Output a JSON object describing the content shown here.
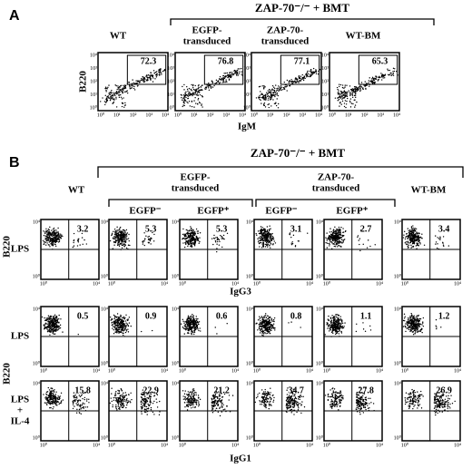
{
  "panel_a": {
    "label": "A",
    "group_header": "ZAP-70⁻/⁻ + BMT",
    "columns": [
      [
        "WT"
      ],
      [
        "EGFP-",
        "transduced"
      ],
      [
        "ZAP-70-",
        "transduced"
      ],
      [
        "WT-BM"
      ]
    ],
    "y_axis": "B220",
    "x_axis": "IgM",
    "values": [
      "72.3",
      "76.8",
      "77.1",
      "65.3"
    ]
  },
  "panel_b": {
    "label": "B",
    "group_header": "ZAP-70⁻/⁻ + BMT",
    "columns": [
      [
        "WT"
      ],
      [
        "EGFP-",
        "transduced"
      ],
      [
        "ZAP-70-",
        "transduced"
      ],
      [
        "WT-BM"
      ]
    ],
    "subcolumns": [
      "EGFP⁻",
      "EGFP⁺",
      "EGFP⁻",
      "EGFP⁺"
    ],
    "rows": [
      {
        "label": [
          "LPS"
        ],
        "values": [
          "3.2",
          "5.3",
          "5.3",
          "3.1",
          "2.7",
          "3.4"
        ]
      },
      {
        "label": [
          "LPS"
        ],
        "values": [
          "0.5",
          "0.9",
          "0.6",
          "0.8",
          "1.1",
          "1.2"
        ]
      },
      {
        "label": [
          "LPS",
          "+",
          "IL-4"
        ],
        "values": [
          "15.8",
          "22.9",
          "21.2",
          "34.7",
          "27.8",
          "26.9"
        ]
      }
    ],
    "y_axis": "B220",
    "x_axes": [
      "IgG3",
      "IgG1"
    ]
  },
  "axis_ticks": [
    "10⁰",
    "10¹",
    "10²",
    "10³",
    "10⁴"
  ]
}
